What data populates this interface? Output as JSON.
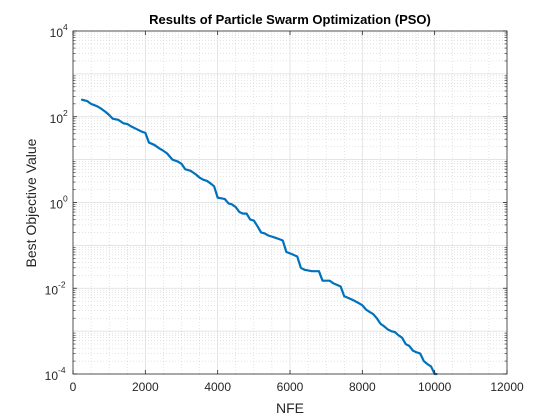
{
  "chart_data": {
    "type": "line",
    "title": "Results of Particle Swarm Optimization (PSO)",
    "xlabel": "NFE",
    "ylabel": "Best Objective Value",
    "xlim": [
      0,
      12000
    ],
    "ylim": [
      0.0001,
      10000
    ],
    "yscale": "log",
    "grid": "major and minor",
    "xticks": [
      0,
      2000,
      4000,
      6000,
      8000,
      10000,
      12000
    ],
    "xtick_labels": [
      "0",
      "2000",
      "4000",
      "6000",
      "8000",
      "10000",
      "12000"
    ],
    "yticks": [
      0.0001,
      0.01,
      1,
      100,
      10000
    ],
    "ytick_base": "10",
    "ytick_exponents": [
      "-4",
      "-2",
      "0",
      "2",
      "4"
    ],
    "line_color": "#0072bd",
    "series": [
      {
        "x": [
          250,
          400,
          500,
          600,
          700,
          800,
          900,
          1000,
          1100,
          1250,
          1400,
          1500,
          1600,
          1750,
          1900,
          2000,
          2100,
          2250,
          2400,
          2500,
          2600,
          2750,
          2900,
          3000,
          3100,
          3250,
          3400,
          3500,
          3600,
          3700,
          3800,
          3900,
          4000,
          4100,
          4200,
          4300,
          4400,
          4500,
          4600,
          4700,
          4800,
          4900,
          5000,
          5100,
          5200,
          5300,
          5400,
          5500,
          5600,
          5700,
          5800,
          5900,
          6000,
          6100,
          6200,
          6300,
          6400,
          6500,
          6600,
          6700,
          6800,
          6900,
          7000,
          7100,
          7200,
          7300,
          7400,
          7500,
          7600,
          7700,
          7800,
          7900,
          8000,
          8100,
          8200,
          8300,
          8400,
          8500,
          8600,
          8700,
          8800,
          8900,
          9000,
          9100,
          9200,
          9300,
          9400,
          9500,
          9600,
          9700,
          9800,
          9900,
          10000,
          10050
        ],
        "y": [
          250,
          230,
          200,
          185,
          170,
          150,
          130,
          110,
          90,
          85,
          70,
          68,
          60,
          52,
          45,
          42,
          25,
          22,
          18,
          16,
          14,
          10,
          9,
          8,
          6,
          5.5,
          4.5,
          3.8,
          3.4,
          3.2,
          2.8,
          2.4,
          1.3,
          1.25,
          1.2,
          0.95,
          0.9,
          0.78,
          0.6,
          0.55,
          0.55,
          0.4,
          0.38,
          0.28,
          0.2,
          0.19,
          0.17,
          0.16,
          0.15,
          0.14,
          0.13,
          0.07,
          0.065,
          0.06,
          0.055,
          0.03,
          0.027,
          0.026,
          0.025,
          0.025,
          0.025,
          0.015,
          0.015,
          0.015,
          0.013,
          0.012,
          0.011,
          0.0065,
          0.006,
          0.0055,
          0.005,
          0.0045,
          0.004,
          0.0032,
          0.0028,
          0.0025,
          0.002,
          0.0015,
          0.0013,
          0.0011,
          0.001,
          0.00095,
          0.0008,
          0.0007,
          0.0005,
          0.00045,
          0.00035,
          0.00032,
          0.0003,
          0.0002,
          0.00017,
          0.00015,
          0.0001,
          0.0001
        ]
      }
    ]
  }
}
